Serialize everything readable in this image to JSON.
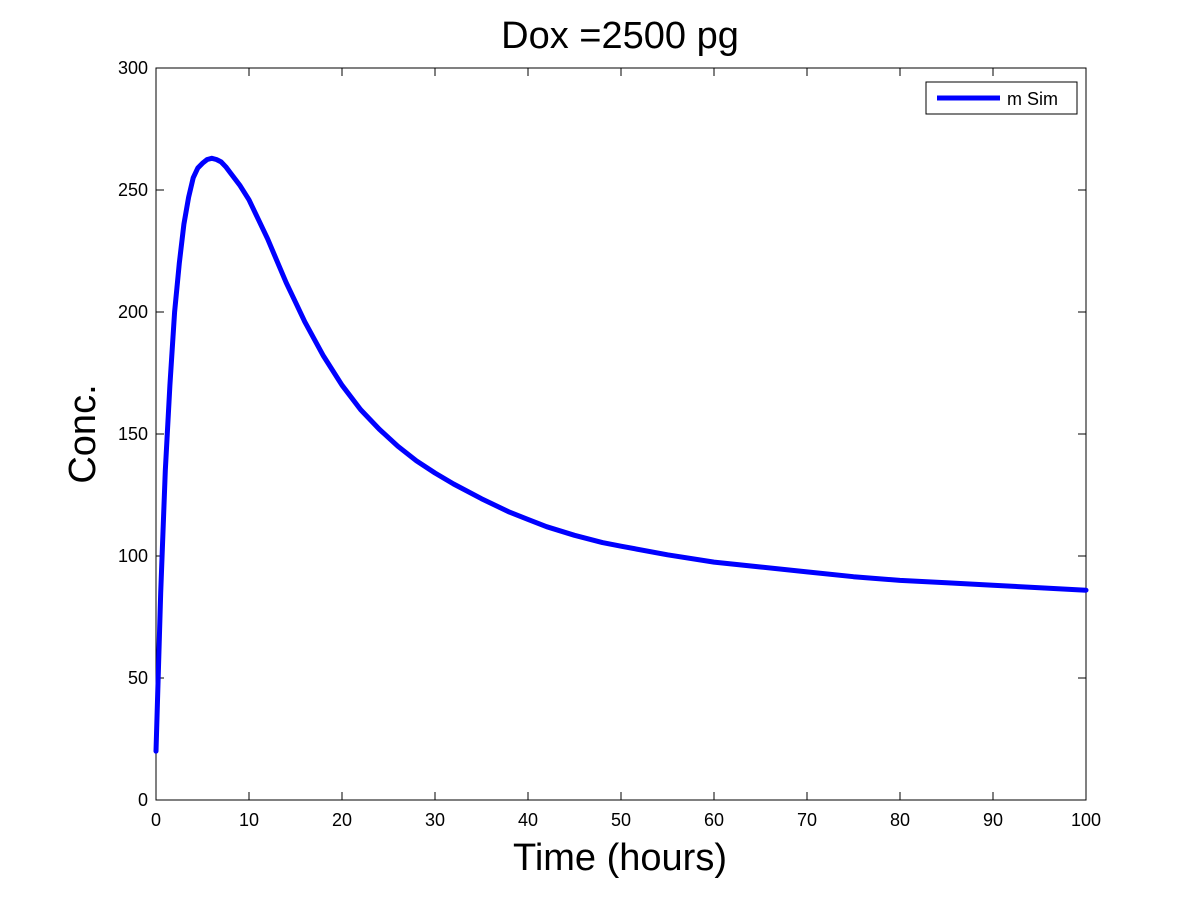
{
  "chart_data": {
    "type": "line",
    "title": "Dox =2500 pg",
    "xlabel": "Time (hours)",
    "ylabel": "Conc.",
    "xlim": [
      0,
      100
    ],
    "ylim": [
      0,
      300
    ],
    "xticks": [
      0,
      10,
      20,
      30,
      40,
      50,
      60,
      70,
      80,
      90,
      100
    ],
    "yticks": [
      0,
      50,
      100,
      150,
      200,
      250,
      300
    ],
    "grid": false,
    "legend": {
      "position": "top-right",
      "entries": [
        "m Sim"
      ]
    },
    "series": [
      {
        "name": "m Sim",
        "color": "#0000ff",
        "x": [
          0,
          0.5,
          1,
          1.5,
          2,
          2.5,
          3,
          3.5,
          4,
          4.5,
          5,
          5.5,
          6,
          6.5,
          7,
          7.5,
          8,
          9,
          10,
          11,
          12,
          13,
          14,
          15,
          16,
          18,
          20,
          22,
          24,
          26,
          28,
          30,
          32,
          35,
          38,
          40,
          42,
          45,
          48,
          50,
          55,
          60,
          65,
          70,
          75,
          80,
          85,
          90,
          95,
          100
        ],
        "y": [
          20,
          85,
          135,
          170,
          200,
          220,
          236,
          247,
          255,
          259,
          261,
          262.5,
          263,
          262.5,
          261.5,
          259.5,
          257,
          252,
          246,
          238,
          230,
          221,
          212,
          204,
          196,
          182,
          170,
          160,
          152,
          145,
          139,
          134,
          129.5,
          123.5,
          118,
          115,
          112,
          108.5,
          105.5,
          104,
          100.5,
          97.5,
          95.5,
          93.5,
          91.5,
          90,
          89,
          88,
          87,
          86
        ]
      }
    ]
  }
}
